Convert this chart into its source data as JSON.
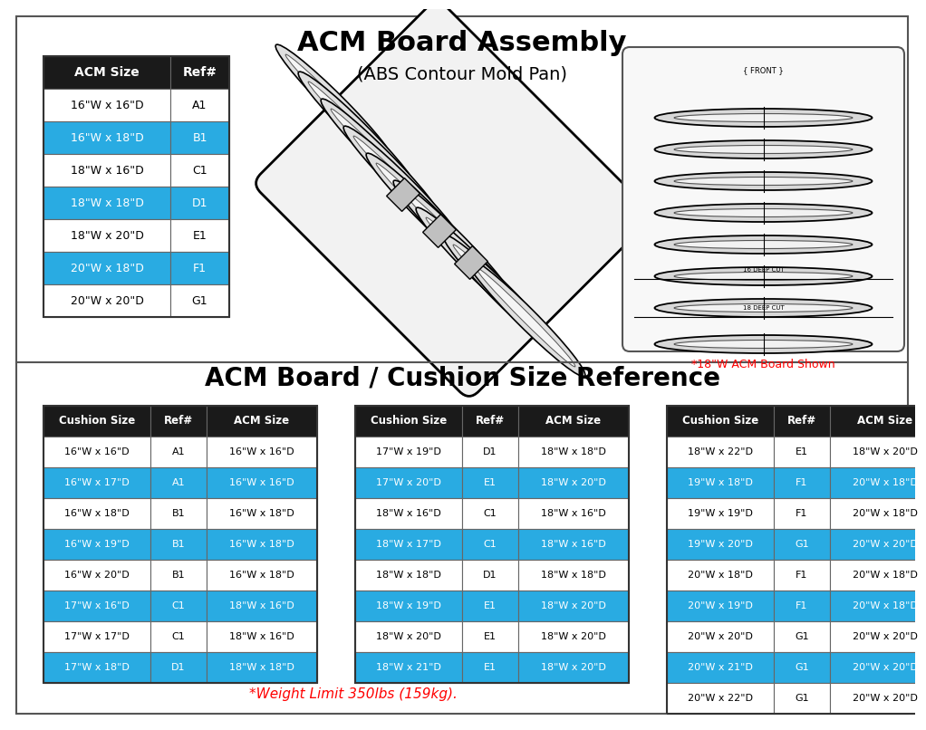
{
  "title1": "ACM Board Assembly",
  "subtitle1": "(ABS Contour Mold Pan)",
  "title2": "ACM Board / Cushion Size Reference",
  "top_table_headers": [
    "ACM Size",
    "Ref#"
  ],
  "top_table_rows": [
    [
      "16\"W x 16\"D",
      "A1",
      false
    ],
    [
      "16\"W x 18\"D",
      "B1",
      true
    ],
    [
      "18\"W x 16\"D",
      "C1",
      false
    ],
    [
      "18\"W x 18\"D",
      "D1",
      true
    ],
    [
      "18\"W x 20\"D",
      "E1",
      false
    ],
    [
      "20\"W x 18\"D",
      "F1",
      true
    ],
    [
      "20\"W x 20\"D",
      "G1",
      false
    ]
  ],
  "acm_note": "*18\"W ACM Board Shown",
  "bottom_table_headers": [
    "Cushion Size",
    "Ref#",
    "ACM Size"
  ],
  "bottom_col1": [
    [
      "16\"W x 16\"D",
      "A1",
      "16\"W x 16\"D",
      false
    ],
    [
      "16\"W x 17\"D",
      "A1",
      "16\"W x 16\"D",
      true
    ],
    [
      "16\"W x 18\"D",
      "B1",
      "16\"W x 18\"D",
      false
    ],
    [
      "16\"W x 19\"D",
      "B1",
      "16\"W x 18\"D",
      true
    ],
    [
      "16\"W x 20\"D",
      "B1",
      "16\"W x 18\"D",
      false
    ],
    [
      "17\"W x 16\"D",
      "C1",
      "18\"W x 16\"D",
      true
    ],
    [
      "17\"W x 17\"D",
      "C1",
      "18\"W x 16\"D",
      false
    ],
    [
      "17\"W x 18\"D",
      "D1",
      "18\"W x 18\"D",
      true
    ]
  ],
  "bottom_col2": [
    [
      "17\"W x 19\"D",
      "D1",
      "18\"W x 18\"D",
      false
    ],
    [
      "17\"W x 20\"D",
      "E1",
      "18\"W x 20\"D",
      true
    ],
    [
      "18\"W x 16\"D",
      "C1",
      "18\"W x 16\"D",
      false
    ],
    [
      "18\"W x 17\"D",
      "C1",
      "18\"W x 16\"D",
      true
    ],
    [
      "18\"W x 18\"D",
      "D1",
      "18\"W x 18\"D",
      false
    ],
    [
      "18\"W x 19\"D",
      "E1",
      "18\"W x 20\"D",
      true
    ],
    [
      "18\"W x 20\"D",
      "E1",
      "18\"W x 20\"D",
      false
    ],
    [
      "18\"W x 21\"D",
      "E1",
      "18\"W x 20\"D",
      true
    ]
  ],
  "bottom_col3": [
    [
      "18\"W x 22\"D",
      "E1",
      "18\"W x 20\"D",
      false
    ],
    [
      "19\"W x 18\"D",
      "F1",
      "20\"W x 18\"D",
      true
    ],
    [
      "19\"W x 19\"D",
      "F1",
      "20\"W x 18\"D",
      false
    ],
    [
      "19\"W x 20\"D",
      "G1",
      "20\"W x 20\"D",
      true
    ],
    [
      "20\"W x 18\"D",
      "F1",
      "20\"W x 18\"D",
      false
    ],
    [
      "20\"W x 19\"D",
      "F1",
      "20\"W x 18\"D",
      true
    ],
    [
      "20\"W x 20\"D",
      "G1",
      "20\"W x 20\"D",
      false
    ],
    [
      "20\"W x 21\"D",
      "G1",
      "20\"W x 20\"D",
      true
    ],
    [
      "20\"W x 22\"D",
      "G1",
      "20\"W x 20\"D",
      false
    ]
  ],
  "weight_note": "*Weight Limit 350lbs (159kg).",
  "cyan_color": "#29ABE2",
  "black_header": "#1a1a1a",
  "white": "#ffffff",
  "border_color": "#333333",
  "red_color": "#FF0000",
  "bg_color": "#ffffff"
}
